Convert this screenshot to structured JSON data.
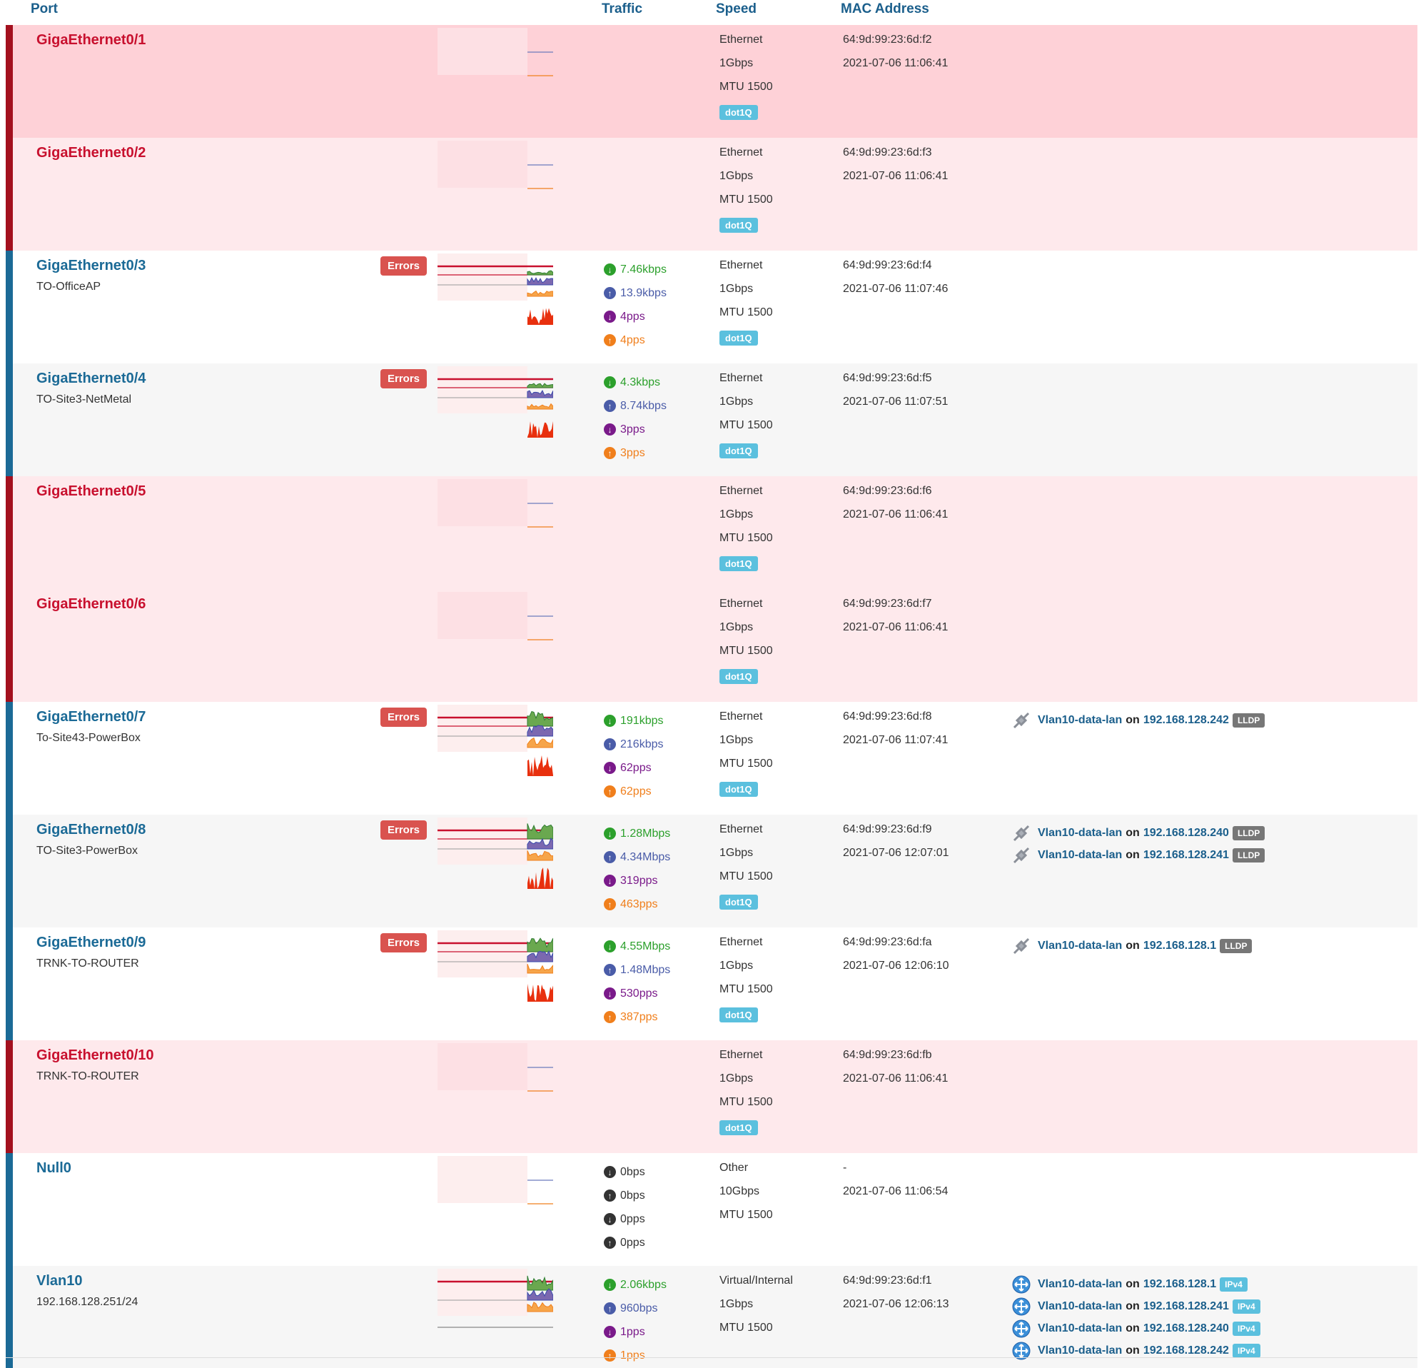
{
  "header": {
    "port": "Port",
    "traffic": "Traffic",
    "speed": "Speed",
    "mac": "MAC Address"
  },
  "labels": {
    "errors": "Errors",
    "on": "on"
  },
  "colors": {
    "up": "#1b6a96",
    "down": "#c8102e",
    "in": "#2ca02c",
    "out": "#4a5ca8",
    "pin": "#7a1a8a",
    "pout": "#f07f1c"
  },
  "rows": [
    {
      "port": "GigaEthernet0/1",
      "desc": "",
      "status": "down",
      "errors": false,
      "traffic": [],
      "media": "Ethernet",
      "speed": "1Gbps",
      "mtu": "MTU 1500",
      "tag": "dot1Q",
      "mac": "64:9d:99:23:6d:f2",
      "changed": "2021-07-06 11:06:41",
      "neighbors": []
    },
    {
      "port": "GigaEthernet0/2",
      "desc": "",
      "status": "down",
      "errors": false,
      "traffic": [],
      "media": "Ethernet",
      "speed": "1Gbps",
      "mtu": "MTU 1500",
      "tag": "dot1Q",
      "mac": "64:9d:99:23:6d:f3",
      "changed": "2021-07-06 11:06:41",
      "neighbors": []
    },
    {
      "port": "GigaEthernet0/3",
      "desc": "TO-OfficeAP",
      "status": "up",
      "errors": true,
      "traffic": [
        "7.46kbps",
        "13.9kbps",
        "4pps",
        "4pps"
      ],
      "media": "Ethernet",
      "speed": "1Gbps",
      "mtu": "MTU 1500",
      "tag": "dot1Q",
      "mac": "64:9d:99:23:6d:f4",
      "changed": "2021-07-06 11:07:46",
      "neighbors": []
    },
    {
      "port": "GigaEthernet0/4",
      "desc": "TO-Site3-NetMetal",
      "status": "up",
      "errors": true,
      "traffic": [
        "4.3kbps",
        "8.74kbps",
        "3pps",
        "3pps"
      ],
      "media": "Ethernet",
      "speed": "1Gbps",
      "mtu": "MTU 1500",
      "tag": "dot1Q",
      "mac": "64:9d:99:23:6d:f5",
      "changed": "2021-07-06 11:07:51",
      "neighbors": []
    },
    {
      "port": "GigaEthernet0/5",
      "desc": "",
      "status": "down",
      "errors": false,
      "traffic": [],
      "media": "Ethernet",
      "speed": "1Gbps",
      "mtu": "MTU 1500",
      "tag": "dot1Q",
      "mac": "64:9d:99:23:6d:f6",
      "changed": "2021-07-06 11:06:41",
      "neighbors": []
    },
    {
      "port": "GigaEthernet0/6",
      "desc": "",
      "status": "down",
      "errors": false,
      "traffic": [],
      "media": "Ethernet",
      "speed": "1Gbps",
      "mtu": "MTU 1500",
      "tag": "dot1Q",
      "mac": "64:9d:99:23:6d:f7",
      "changed": "2021-07-06 11:06:41",
      "neighbors": []
    },
    {
      "port": "GigaEthernet0/7",
      "desc": "To-Site43-PowerBox",
      "status": "up",
      "errors": true,
      "traffic": [
        "191kbps",
        "216kbps",
        "62pps",
        "62pps"
      ],
      "media": "Ethernet",
      "speed": "1Gbps",
      "mtu": "MTU 1500",
      "tag": "dot1Q",
      "mac": "64:9d:99:23:6d:f8",
      "changed": "2021-07-06 11:07:41",
      "neighbors": [
        {
          "name": "Vlan10-data-lan",
          "ip": "192.168.128.242",
          "proto": "LLDP",
          "icon": "ethernet-plug-icon"
        }
      ]
    },
    {
      "port": "GigaEthernet0/8",
      "desc": "TO-Site3-PowerBox",
      "status": "up",
      "errors": true,
      "traffic": [
        "1.28Mbps",
        "4.34Mbps",
        "319pps",
        "463pps"
      ],
      "media": "Ethernet",
      "speed": "1Gbps",
      "mtu": "MTU 1500",
      "tag": "dot1Q",
      "mac": "64:9d:99:23:6d:f9",
      "changed": "2021-07-06 12:07:01",
      "neighbors": [
        {
          "name": "Vlan10-data-lan",
          "ip": "192.168.128.240",
          "proto": "LLDP",
          "icon": "ethernet-plug-icon"
        },
        {
          "name": "Vlan10-data-lan",
          "ip": "192.168.128.241",
          "proto": "LLDP",
          "icon": "ethernet-plug-icon"
        }
      ]
    },
    {
      "port": "GigaEthernet0/9",
      "desc": "TRNK-TO-ROUTER",
      "status": "up",
      "errors": true,
      "traffic": [
        "4.55Mbps",
        "1.48Mbps",
        "530pps",
        "387pps"
      ],
      "media": "Ethernet",
      "speed": "1Gbps",
      "mtu": "MTU 1500",
      "tag": "dot1Q",
      "mac": "64:9d:99:23:6d:fa",
      "changed": "2021-07-06 12:06:10",
      "neighbors": [
        {
          "name": "Vlan10-data-lan",
          "ip": "192.168.128.1",
          "proto": "LLDP",
          "icon": "ethernet-plug-icon"
        }
      ]
    },
    {
      "port": "GigaEthernet0/10",
      "desc": "TRNK-TO-ROUTER",
      "status": "down",
      "errors": false,
      "traffic": [],
      "media": "Ethernet",
      "speed": "1Gbps",
      "mtu": "MTU 1500",
      "tag": "dot1Q",
      "mac": "64:9d:99:23:6d:fb",
      "changed": "2021-07-06 11:06:41",
      "neighbors": []
    },
    {
      "port": "Null0",
      "desc": "",
      "status": "up",
      "errors": false,
      "traffic": [
        "0bps",
        "0bps",
        "0pps",
        "0pps"
      ],
      "media": "Other",
      "speed": "10Gbps",
      "mtu": "MTU 1500",
      "tag": "",
      "mac": "-",
      "changed": "2021-07-06 11:06:54",
      "neighbors": []
    },
    {
      "port": "Vlan10",
      "desc": "192.168.128.251/24",
      "status": "up",
      "errors": false,
      "traffic": [
        "2.06kbps",
        "960bps",
        "1pps",
        "1pps"
      ],
      "media": "Virtual/Internal",
      "speed": "1Gbps",
      "mtu": "MTU 1500",
      "tag": "",
      "mac": "64:9d:99:23:6d:f1",
      "changed": "2021-07-06 12:06:13",
      "neighbors": [
        {
          "name": "Vlan10-data-lan",
          "ip": "192.168.128.1",
          "proto": "IPv4",
          "icon": "network-hub-icon"
        },
        {
          "name": "Vlan10-data-lan",
          "ip": "192.168.128.241",
          "proto": "IPv4",
          "icon": "network-hub-icon"
        },
        {
          "name": "Vlan10-data-lan",
          "ip": "192.168.128.240",
          "proto": "IPv4",
          "icon": "network-hub-icon"
        },
        {
          "name": "Vlan10-data-lan",
          "ip": "192.168.128.242",
          "proto": "IPv4",
          "icon": "network-hub-icon"
        }
      ]
    }
  ]
}
